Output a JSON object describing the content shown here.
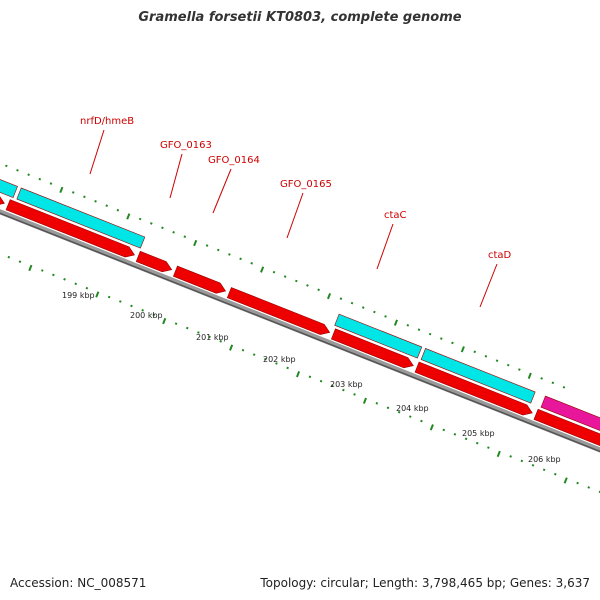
{
  "title": "Gramella forsetii KT0803, complete genome",
  "footer": {
    "accession": "Accession: NC_008571",
    "summary": "Topology: circular; Length: 3,798,465 bp; Genes: 3,637"
  },
  "colors": {
    "cds": "#ee0000",
    "gene_cyan": "#00e5e5",
    "gene_magenta": "#e8169b",
    "label": "#cc0000",
    "ticks": "#228822",
    "backbone": "#777777"
  },
  "gene_labels": [
    "nrfD/hmeB",
    "GFO_0163",
    "GFO_0164",
    "GFO_0165",
    "ctaC",
    "ctaD"
  ],
  "kbp_labels": [
    "199 kbp",
    "200 kbp",
    "201 kbp",
    "202 kbp",
    "203 kbp",
    "204 kbp",
    "205 kbp",
    "206 kbp"
  ]
}
